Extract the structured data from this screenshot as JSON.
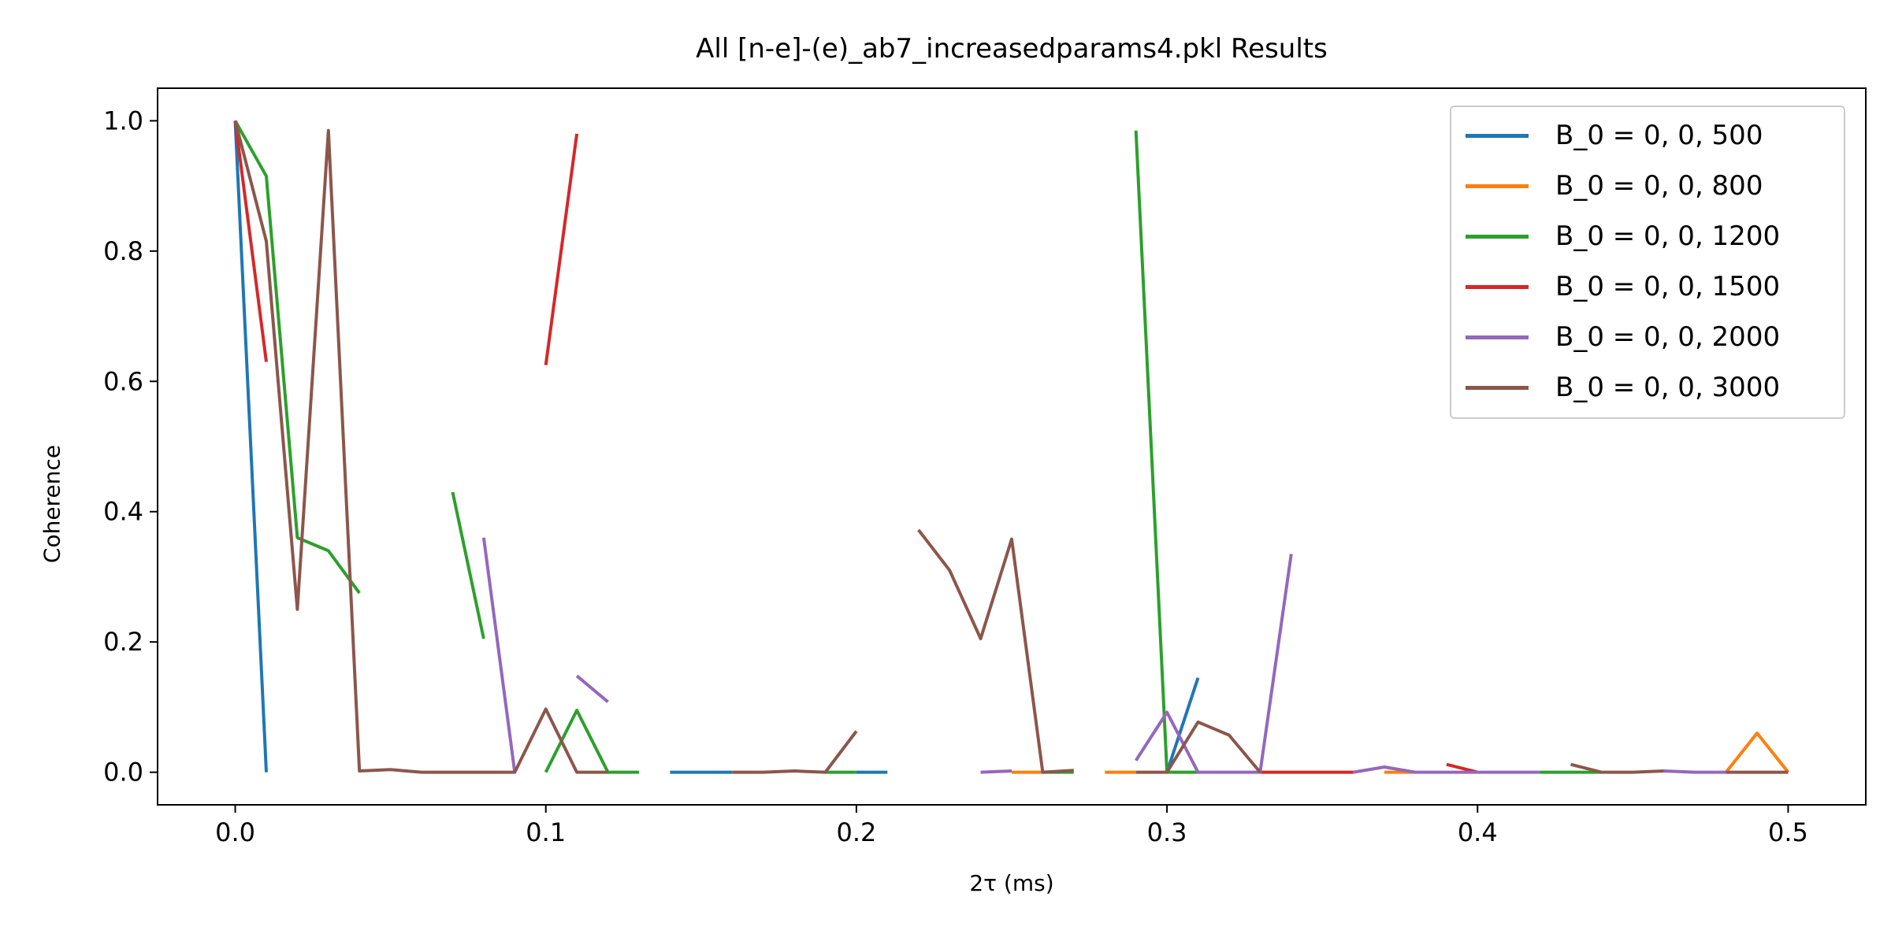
{
  "chart_data": {
    "type": "line",
    "title": "All [n-e]-(e)_ab7_increasedparams4.pkl Results",
    "xlabel": "2τ (ms)",
    "ylabel": "Coherence",
    "xlim": [
      -0.025,
      0.525
    ],
    "ylim": [
      -0.05,
      1.05
    ],
    "xticks": [
      0.0,
      0.1,
      0.2,
      0.3,
      0.4,
      0.5
    ],
    "xtick_labels": [
      "0.0",
      "0.1",
      "0.2",
      "0.3",
      "0.4",
      "0.5"
    ],
    "yticks": [
      0.0,
      0.2,
      0.4,
      0.6,
      0.8,
      1.0
    ],
    "ytick_labels": [
      "0.0",
      "0.2",
      "0.4",
      "0.6",
      "0.8",
      "1.0"
    ],
    "grid": false,
    "legend_position": "upper right",
    "series": [
      {
        "name": "B_0 = 0, 0, 500",
        "color": "#1f77b4",
        "segments": [
          [
            [
              0.0,
              1.0
            ],
            [
              0.01,
              0.0
            ]
          ],
          [
            [
              0.14,
              0.0
            ],
            [
              0.15,
              0.0
            ],
            [
              0.16,
              0.0
            ]
          ],
          [
            [
              0.2,
              0.0
            ],
            [
              0.21,
              0.0
            ]
          ],
          [
            [
              0.3,
              0.0
            ],
            [
              0.31,
              0.145
            ]
          ]
        ]
      },
      {
        "name": "B_0 = 0, 0, 800",
        "color": "#ff7f0e",
        "segments": [
          [
            [
              0.25,
              0.0
            ],
            [
              0.26,
              0.0
            ]
          ],
          [
            [
              0.28,
              0.0
            ],
            [
              0.29,
              0.0
            ]
          ],
          [
            [
              0.37,
              0.0
            ],
            [
              0.38,
              0.0
            ]
          ],
          [
            [
              0.48,
              0.0
            ],
            [
              0.49,
              0.06
            ],
            [
              0.5,
              0.0
            ]
          ]
        ]
      },
      {
        "name": "B_0 = 0, 0, 1200",
        "color": "#2ca02c",
        "segments": [
          [
            [
              0.0,
              1.0
            ],
            [
              0.01,
              0.915
            ],
            [
              0.02,
              0.36
            ],
            [
              0.03,
              0.34
            ],
            [
              0.04,
              0.275
            ]
          ],
          [
            [
              0.07,
              0.43
            ],
            [
              0.08,
              0.205
            ]
          ],
          [
            [
              0.1,
              0.0
            ],
            [
              0.11,
              0.095
            ],
            [
              0.12,
              0.0
            ],
            [
              0.13,
              0.0
            ]
          ],
          [
            [
              0.19,
              0.0
            ],
            [
              0.2,
              0.0
            ]
          ],
          [
            [
              0.26,
              0.0
            ],
            [
              0.27,
              0.0
            ]
          ],
          [
            [
              0.29,
              0.985
            ],
            [
              0.3,
              0.0
            ],
            [
              0.31,
              0.0
            ]
          ],
          [
            [
              0.42,
              0.0
            ],
            [
              0.43,
              0.0
            ],
            [
              0.44,
              0.0
            ]
          ]
        ]
      },
      {
        "name": "B_0 = 0, 0, 1500",
        "color": "#d62728",
        "segments": [
          [
            [
              0.0,
              1.0
            ],
            [
              0.01,
              0.63
            ]
          ],
          [
            [
              0.1,
              0.625
            ],
            [
              0.11,
              0.98
            ]
          ],
          [
            [
              0.33,
              0.0
            ],
            [
              0.34,
              0.0
            ],
            [
              0.35,
              0.0
            ],
            [
              0.36,
              0.0
            ]
          ],
          [
            [
              0.39,
              0.012
            ],
            [
              0.4,
              0.0
            ]
          ]
        ]
      },
      {
        "name": "B_0 = 0, 0, 2000",
        "color": "#9467bd",
        "segments": [
          [
            [
              0.08,
              0.36
            ],
            [
              0.09,
              0.0
            ]
          ],
          [
            [
              0.11,
              0.148
            ],
            [
              0.12,
              0.108
            ]
          ],
          [
            [
              0.24,
              0.0
            ],
            [
              0.25,
              0.002
            ]
          ],
          [
            [
              0.29,
              0.018
            ],
            [
              0.3,
              0.092
            ],
            [
              0.31,
              0.0
            ],
            [
              0.32,
              0.0
            ],
            [
              0.33,
              0.0
            ],
            [
              0.34,
              0.335
            ]
          ],
          [
            [
              0.36,
              0.0
            ],
            [
              0.37,
              0.008
            ],
            [
              0.38,
              0.0
            ],
            [
              0.39,
              0.0
            ],
            [
              0.4,
              0.0
            ],
            [
              0.41,
              0.0
            ],
            [
              0.42,
              0.0
            ]
          ],
          [
            [
              0.46,
              0.002
            ],
            [
              0.47,
              0.0
            ],
            [
              0.48,
              0.0
            ]
          ]
        ]
      },
      {
        "name": "B_0 = 0, 0, 3000",
        "color": "#8c564b",
        "segments": [
          [
            [
              0.0,
              1.0
            ],
            [
              0.01,
              0.815
            ],
            [
              0.02,
              0.25
            ],
            [
              0.03,
              0.985
            ],
            [
              0.04,
              0.002
            ],
            [
              0.05,
              0.004
            ],
            [
              0.06,
              0.0
            ],
            [
              0.07,
              0.0
            ],
            [
              0.08,
              0.0
            ],
            [
              0.09,
              0.0
            ],
            [
              0.1,
              0.097
            ],
            [
              0.11,
              0.0
            ],
            [
              0.12,
              0.0
            ]
          ],
          [
            [
              0.16,
              0.0
            ],
            [
              0.17,
              0.0
            ],
            [
              0.18,
              0.002
            ],
            [
              0.19,
              0.0
            ],
            [
              0.2,
              0.063
            ]
          ],
          [
            [
              0.22,
              0.372
            ],
            [
              0.23,
              0.31
            ],
            [
              0.24,
              0.205
            ],
            [
              0.25,
              0.358
            ],
            [
              0.26,
              0.0
            ],
            [
              0.27,
              0.003
            ]
          ],
          [
            [
              0.29,
              0.0
            ],
            [
              0.3,
              0.0
            ],
            [
              0.31,
              0.077
            ],
            [
              0.32,
              0.057
            ],
            [
              0.33,
              0.0
            ]
          ],
          [
            [
              0.43,
              0.012
            ],
            [
              0.44,
              0.0
            ],
            [
              0.45,
              0.0
            ],
            [
              0.46,
              0.002
            ]
          ],
          [
            [
              0.48,
              0.0
            ],
            [
              0.49,
              0.0
            ],
            [
              0.5,
              0.0
            ]
          ]
        ]
      }
    ]
  }
}
